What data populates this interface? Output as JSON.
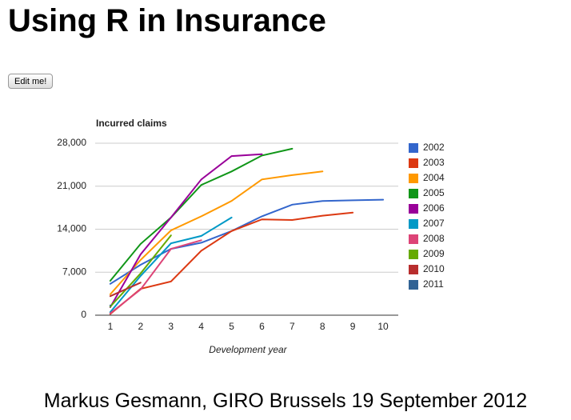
{
  "page": {
    "title": "Using R in Insurance",
    "button": "Edit me!",
    "footer": "Markus Gesmann, GIRO Brussels 19 September 2012"
  },
  "chart_data": {
    "type": "line",
    "title": "Incurred claims",
    "x_label": "Development year",
    "x": [
      1,
      2,
      3,
      4,
      5,
      6,
      7,
      8,
      9,
      10
    ],
    "xlim": [
      0.5,
      10.5
    ],
    "xticks": [
      1,
      2,
      3,
      4,
      5,
      6,
      7,
      8,
      9,
      10
    ],
    "ylim": [
      0,
      28000
    ],
    "yticks": [
      0,
      {
        "value": 7000,
        "label": "7,000"
      },
      {
        "value": 14000,
        "label": "14,000"
      },
      {
        "value": 21000,
        "label": "21,000"
      },
      {
        "value": 28000,
        "label": "28,000"
      }
    ],
    "grid": true,
    "legend": "right",
    "series": [
      {
        "name": "2002",
        "color": "#3366cc",
        "values": [
          5100,
          8200,
          10800,
          11800,
          13700,
          16100,
          18000,
          18600,
          18700,
          18800
        ]
      },
      {
        "name": "2003",
        "color": "#dc3912",
        "values": [
          200,
          4300,
          5500,
          10500,
          13700,
          15600,
          15500,
          16200,
          16700,
          null
        ]
      },
      {
        "name": "2004",
        "color": "#ff9900",
        "values": [
          3400,
          9000,
          13800,
          16100,
          18600,
          22100,
          22800,
          23400,
          null,
          null
        ]
      },
      {
        "name": "2005",
        "color": "#109618",
        "values": [
          5600,
          11600,
          15900,
          21200,
          23400,
          26000,
          27100,
          null,
          null,
          null
        ]
      },
      {
        "name": "2006",
        "color": "#990099",
        "values": [
          1300,
          9900,
          15900,
          22100,
          25900,
          26200,
          null,
          null,
          null,
          null
        ]
      },
      {
        "name": "2007",
        "color": "#0099c6",
        "values": [
          500,
          6400,
          11700,
          12900,
          15900,
          null,
          null,
          null,
          null,
          null
        ]
      },
      {
        "name": "2008",
        "color": "#dd4477",
        "values": [
          300,
          4200,
          10800,
          12200,
          null,
          null,
          null,
          null,
          null,
          null
        ]
      },
      {
        "name": "2009",
        "color": "#66aa00",
        "values": [
          1400,
          6800,
          13000,
          null,
          null,
          null,
          null,
          null,
          null,
          null
        ]
      },
      {
        "name": "2010",
        "color": "#b82e2e",
        "values": [
          3100,
          5300,
          null,
          null,
          null,
          null,
          null,
          null,
          null,
          null
        ]
      },
      {
        "name": "2011",
        "color": "#316395",
        "values": [
          1600,
          null,
          null,
          null,
          null,
          null,
          null,
          null,
          null,
          null
        ]
      }
    ]
  }
}
